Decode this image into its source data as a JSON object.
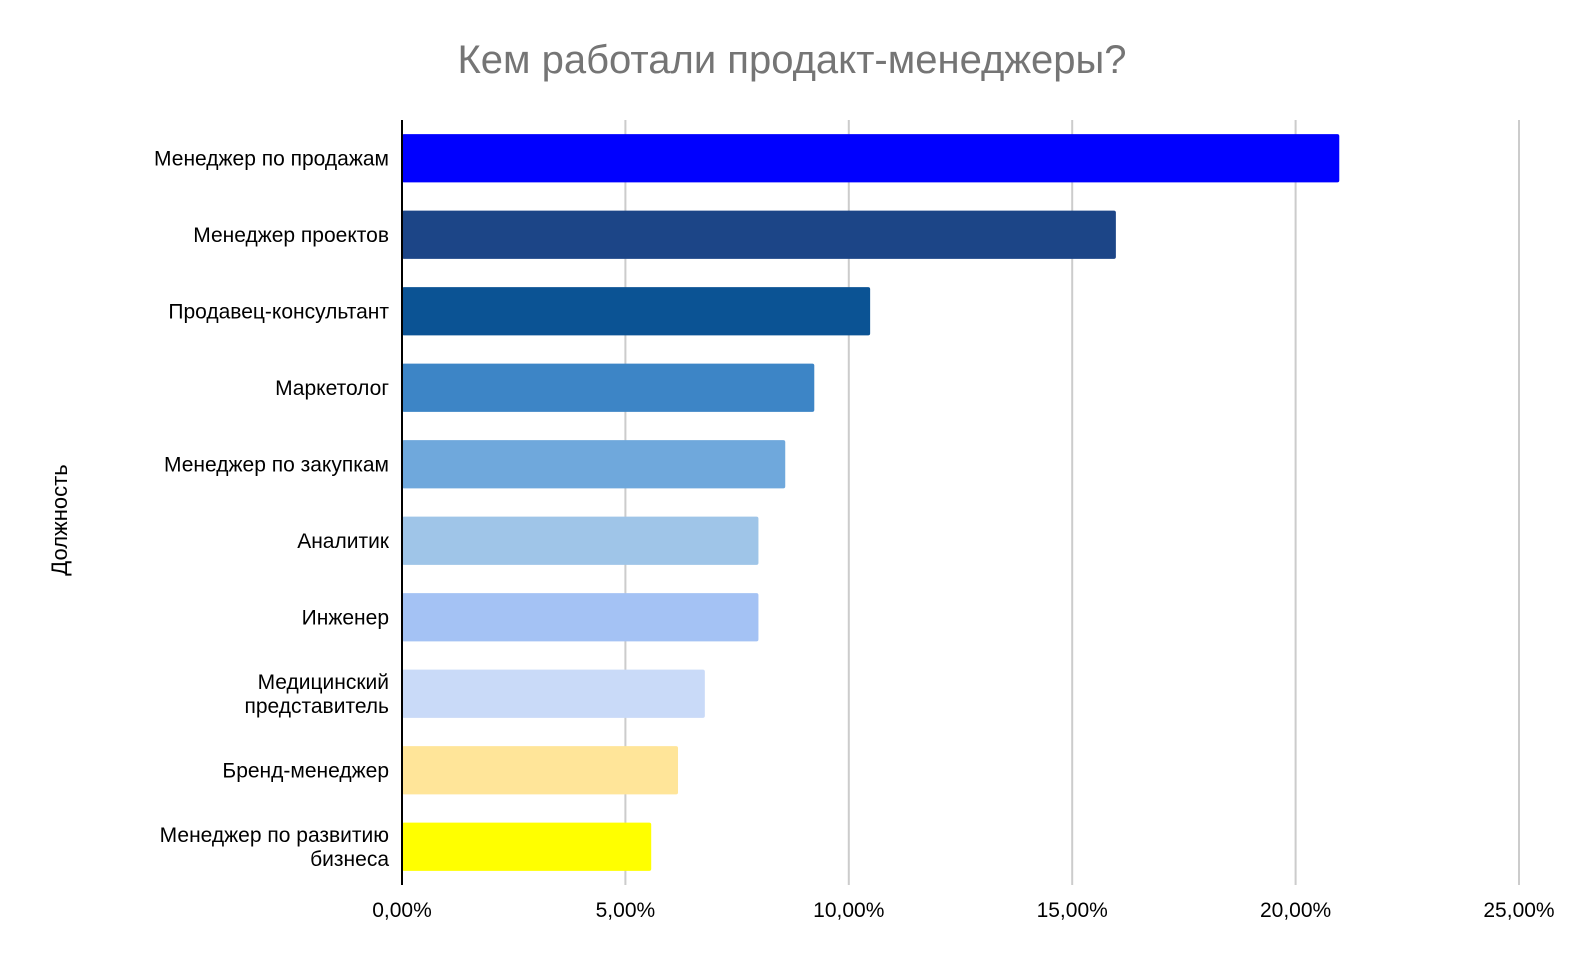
{
  "chart_data": {
    "type": "bar",
    "orientation": "horizontal",
    "title": "Кем работали продакт-менеджеры?",
    "xlabel": "",
    "ylabel": "Должность",
    "categories": [
      [
        "Менеджер по продажам"
      ],
      [
        "Менеджер проектов"
      ],
      [
        "Продавец-консультант"
      ],
      [
        "Маркетолог"
      ],
      [
        "Менеджер по закупкам"
      ],
      [
        "Аналитик"
      ],
      [
        "Инженер"
      ],
      [
        "Медицинский",
        "представитель"
      ],
      [
        "Бренд-менеджер"
      ],
      [
        "Менеджер по развитию",
        "бизнеса"
      ]
    ],
    "values": [
      21.0,
      16.0,
      10.5,
      9.25,
      8.6,
      8.0,
      8.0,
      6.8,
      6.2,
      5.6
    ],
    "bar_colors": [
      "#0000ff",
      "#1c4587",
      "#0b5394",
      "#3d85c6",
      "#6fa8dc",
      "#9fc5e8",
      "#a4c2f4",
      "#c9daf8",
      "#ffe599",
      "#ffff00"
    ],
    "xlim": [
      0,
      25
    ],
    "x_ticks": [
      0,
      5,
      10,
      15,
      20,
      25
    ],
    "x_tick_labels": [
      "0,00%",
      "5,00%",
      "10,00%",
      "15,00%",
      "20,00%",
      "25,00%"
    ],
    "grid": "vertical",
    "legend": "none"
  }
}
